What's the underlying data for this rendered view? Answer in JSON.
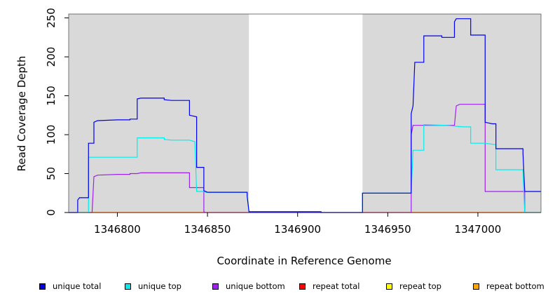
{
  "chart_data": {
    "type": "line",
    "step": true,
    "xlabel": "Coordinate in Reference Genome",
    "ylabel": "Read Coverage Depth",
    "xlim": [
      1346773,
      1347035
    ],
    "ylim": [
      0,
      255
    ],
    "x_ticks": [
      1346800,
      1346850,
      1346900,
      1346950,
      1347000
    ],
    "y_ticks": [
      0,
      50,
      100,
      150,
      200,
      250
    ],
    "shaded_regions": [
      [
        1346773,
        1346873
      ],
      [
        1346936,
        1347035
      ]
    ],
    "shade_color": "#d9d9d9",
    "grid": false,
    "legend_position": "bottom",
    "series": [
      {
        "name": "unique total",
        "color": "#0000ee",
        "points": [
          [
            1346773,
            0
          ],
          [
            1346778,
            0
          ],
          [
            1346778,
            16
          ],
          [
            1346779,
            19
          ],
          [
            1346784,
            19
          ],
          [
            1346784,
            89
          ],
          [
            1346787,
            89
          ],
          [
            1346787,
            116
          ],
          [
            1346789,
            118
          ],
          [
            1346800,
            119
          ],
          [
            1346807,
            119
          ],
          [
            1346807,
            120
          ],
          [
            1346811,
            120
          ],
          [
            1346811,
            146
          ],
          [
            1346813,
            147
          ],
          [
            1346826,
            147
          ],
          [
            1346826,
            145
          ],
          [
            1346830,
            144
          ],
          [
            1346840,
            144
          ],
          [
            1346840,
            125
          ],
          [
            1346844,
            123
          ],
          [
            1346844,
            58
          ],
          [
            1346848,
            58
          ],
          [
            1346848,
            28
          ],
          [
            1346850,
            26
          ],
          [
            1346872,
            26
          ],
          [
            1346872,
            21
          ],
          [
            1346873,
            1
          ],
          [
            1346913,
            1
          ],
          [
            1346913,
            0
          ],
          [
            1346936,
            0
          ],
          [
            1346936,
            25
          ],
          [
            1346963,
            25
          ],
          [
            1346963,
            127
          ],
          [
            1346964,
            137
          ],
          [
            1346965,
            193
          ],
          [
            1346970,
            193
          ],
          [
            1346970,
            227
          ],
          [
            1346980,
            227
          ],
          [
            1346980,
            225
          ],
          [
            1346987,
            225
          ],
          [
            1346987,
            245
          ],
          [
            1346988,
            249
          ],
          [
            1346996,
            249
          ],
          [
            1346996,
            228
          ],
          [
            1347004,
            228
          ],
          [
            1347004,
            116
          ],
          [
            1347008,
            114
          ],
          [
            1347010,
            114
          ],
          [
            1347010,
            82
          ],
          [
            1347025,
            82
          ],
          [
            1347025,
            76
          ],
          [
            1347026,
            27
          ],
          [
            1347035,
            27
          ]
        ]
      },
      {
        "name": "unique top",
        "color": "#00eeee",
        "points": [
          [
            1346773,
            0
          ],
          [
            1346784,
            0
          ],
          [
            1346784,
            71
          ],
          [
            1346811,
            71
          ],
          [
            1346811,
            96
          ],
          [
            1346826,
            96
          ],
          [
            1346826,
            94
          ],
          [
            1346830,
            93
          ],
          [
            1346840,
            93
          ],
          [
            1346843,
            91
          ],
          [
            1346844,
            27
          ],
          [
            1346848,
            27
          ],
          [
            1346849,
            26
          ],
          [
            1346872,
            26
          ],
          [
            1346872,
            21
          ],
          [
            1346873,
            1
          ],
          [
            1346913,
            1
          ],
          [
            1346913,
            0
          ],
          [
            1346936,
            0
          ],
          [
            1346936,
            25
          ],
          [
            1346963,
            25
          ],
          [
            1346964,
            80
          ],
          [
            1346970,
            80
          ],
          [
            1346970,
            113
          ],
          [
            1346982,
            112
          ],
          [
            1346992,
            110
          ],
          [
            1346996,
            110
          ],
          [
            1346996,
            89
          ],
          [
            1347004,
            89
          ],
          [
            1347010,
            87
          ],
          [
            1347010,
            55
          ],
          [
            1347025,
            55
          ],
          [
            1347025,
            50
          ],
          [
            1347026,
            0
          ],
          [
            1347035,
            0
          ]
        ]
      },
      {
        "name": "unique bottom",
        "color": "#a020f0",
        "points": [
          [
            1346773,
            0
          ],
          [
            1346786,
            0
          ],
          [
            1346787,
            46
          ],
          [
            1346789,
            48
          ],
          [
            1346800,
            49
          ],
          [
            1346807,
            49
          ],
          [
            1346807,
            50
          ],
          [
            1346811,
            50
          ],
          [
            1346813,
            51
          ],
          [
            1346826,
            51
          ],
          [
            1346840,
            51
          ],
          [
            1346840,
            32
          ],
          [
            1346848,
            32
          ],
          [
            1346848,
            1
          ],
          [
            1346849,
            0
          ],
          [
            1346963,
            0
          ],
          [
            1346963,
            100
          ],
          [
            1346964,
            112
          ],
          [
            1346987,
            112
          ],
          [
            1346988,
            137
          ],
          [
            1346990,
            139
          ],
          [
            1347004,
            139
          ],
          [
            1347004,
            27
          ],
          [
            1347026,
            27
          ],
          [
            1347026,
            0
          ],
          [
            1347035,
            0
          ]
        ]
      },
      {
        "name": "repeat total",
        "color": "#ff0000",
        "points": [
          [
            1346773,
            0
          ],
          [
            1347035,
            0
          ]
        ]
      },
      {
        "name": "repeat top",
        "color": "#ffff00",
        "points": [
          [
            1346773,
            0
          ],
          [
            1347035,
            0
          ]
        ]
      },
      {
        "name": "repeat bottom",
        "color": "#ffa500",
        "points": [
          [
            1346778,
            0
          ],
          [
            1347035,
            0
          ]
        ]
      }
    ]
  }
}
